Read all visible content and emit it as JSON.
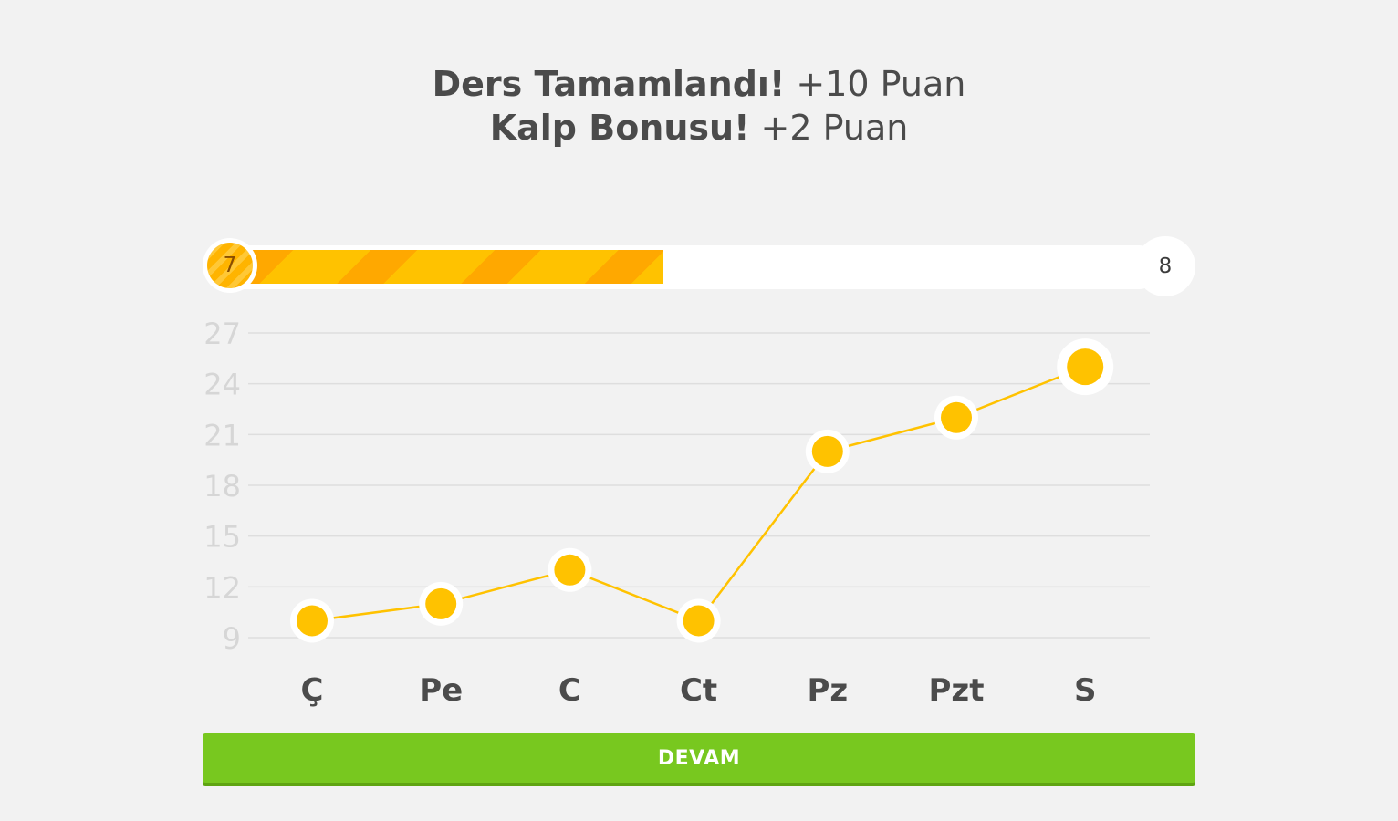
{
  "header": {
    "line1_strong": "Ders Tamamlandı!",
    "line1_light": "+10 Puan",
    "line2_strong": "Kalp Bonusu!",
    "line2_light": "+2 Puan"
  },
  "level": {
    "current": "7",
    "next": "8",
    "progress_fraction": 0.46
  },
  "colors": {
    "accent_yellow": "#ffc200",
    "accent_orange": "#ffa800",
    "button_green": "#78c81f",
    "grid": "#dedede",
    "tick_text": "#d6d6d6",
    "category_text": "#4b4b4b"
  },
  "chart_data": {
    "type": "line",
    "categories": [
      "Ç",
      "Pe",
      "C",
      "Ct",
      "Pz",
      "Pzt",
      "S"
    ],
    "values": [
      10,
      11,
      13,
      10,
      20,
      22,
      25
    ],
    "ylim": [
      9,
      27
    ],
    "yticks": [
      9,
      12,
      15,
      18,
      21,
      24,
      27
    ],
    "grid": true,
    "highlight_last": true
  },
  "actions": {
    "continue_label": "DEVAM"
  }
}
